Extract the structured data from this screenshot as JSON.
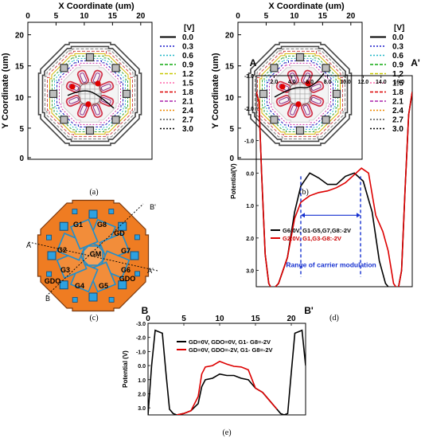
{
  "figure": {
    "panels": {
      "a": {
        "caption": "(a)",
        "x_title": "X Coordinate (um)",
        "y_title": "Y Coordinate (um)",
        "x_ticks": [
          "0",
          "5",
          "10",
          "15",
          "20"
        ],
        "y_ticks": [
          "20",
          "15",
          "10",
          "5",
          "0"
        ],
        "legend_title": "[V]",
        "legend": [
          "0.0",
          "0.3",
          "0.6",
          "0.9",
          "1.2",
          "1.5",
          "1.8",
          "2.1",
          "2.4",
          "2.7",
          "3.0"
        ],
        "legend_colors": [
          "#000000",
          "#1a1acc",
          "#22b7c8",
          "#11aa11",
          "#c8c800",
          "#ff66aa",
          "#dd0000",
          "#aa22aa",
          "#ee8800",
          "#555555",
          "#000000"
        ]
      },
      "b": {
        "caption": "(b)",
        "x_title": "X Coordinate (um)",
        "y_title": "Y Coordinate (um)",
        "x_ticks": [
          "0",
          "5",
          "10",
          "15",
          "20"
        ],
        "y_ticks": [
          "20",
          "15",
          "10",
          "5",
          "0"
        ],
        "legend_title": "[V]",
        "legend": [
          "0.0",
          "0.3",
          "0.6",
          "0.9",
          "1.2",
          "1.5",
          "1.8",
          "2.1",
          "2.4",
          "2.7",
          "3.0"
        ]
      },
      "c": {
        "caption": "(c)",
        "labels": [
          "B'",
          "A",
          "A'",
          "B",
          "G1",
          "G8",
          "GD",
          "G2",
          "G7",
          "GM",
          "G3",
          "G6",
          "GDO",
          "G4",
          "G5",
          "GDO"
        ]
      },
      "d": {
        "caption": "(d)",
        "left_label": "A",
        "right_label": "A'",
        "y_title": "Potential(V)",
        "x_ticks": [
          "2.0",
          "4.0",
          "6.0",
          "8.0",
          "10.0",
          "12.0",
          "14.0",
          "16.0"
        ],
        "y_ticks": [
          "-3.0",
          "-2.0",
          "-1.0",
          "0.0",
          "1.0",
          "2.0",
          "3.0"
        ],
        "annotation": "Range of carrier modulation"
      },
      "e": {
        "caption": "(e)",
        "left_label": "B",
        "right_label": "B'",
        "y_title": "Potential (V)",
        "x_ticks": [
          "0",
          "5",
          "10",
          "15",
          "20"
        ],
        "y_ticks": [
          "-3.0",
          "-2.0",
          "-1.0",
          "0.0",
          "1.0",
          "2.0",
          "3.0"
        ]
      }
    }
  },
  "chart_data": [
    {
      "type": "line",
      "panel": "d",
      "xlabel": "",
      "ylabel": "Potential(V)",
      "xlim": [
        0,
        17.5
      ],
      "ylim": [
        -3.0,
        3.5
      ],
      "y_inverted": true,
      "series": [
        {
          "name": "G6:0V, G1-G5,G7,G8:-2V",
          "color": "#000000",
          "x": [
            0.0,
            0.3,
            0.6,
            1.0,
            1.4,
            1.8,
            2.5,
            3.5,
            4.3,
            5.0,
            6.0,
            7.0,
            8.0,
            9.0,
            10.0,
            11.0,
            12.0,
            13.0,
            13.8,
            14.5,
            15.4,
            15.9,
            16.3,
            16.7,
            17.1,
            17.5
          ],
          "y": [
            -2.5,
            -2.2,
            0.0,
            2.5,
            3.4,
            3.6,
            3.4,
            2.6,
            1.2,
            0.4,
            0.0,
            0.15,
            0.35,
            0.35,
            0.1,
            0.0,
            0.25,
            1.2,
            2.7,
            3.4,
            3.7,
            3.6,
            3.0,
            0.5,
            -1.8,
            -2.5
          ]
        },
        {
          "name": "G2:0V, G1,G3-G8:-2V",
          "color": "#dd0000",
          "x": [
            0.0,
            0.3,
            0.6,
            1.0,
            1.4,
            1.8,
            2.5,
            3.5,
            4.3,
            5.0,
            6.0,
            7.0,
            8.0,
            9.0,
            10.0,
            11.0,
            11.8,
            12.6,
            13.4,
            14.2,
            14.8,
            15.4,
            15.9,
            16.3,
            16.7,
            17.1,
            17.5
          ],
          "y": [
            -2.5,
            -2.2,
            0.0,
            2.5,
            3.4,
            3.6,
            3.4,
            2.6,
            1.4,
            0.9,
            0.7,
            0.6,
            0.55,
            0.45,
            0.3,
            0.05,
            -0.15,
            0.0,
            1.3,
            1.8,
            2.4,
            3.4,
            3.6,
            3.0,
            0.5,
            -1.8,
            -2.5
          ]
        }
      ]
    },
    {
      "type": "line",
      "panel": "e",
      "xlabel": "",
      "ylabel": "Potential (V)",
      "xlim": [
        0,
        22
      ],
      "ylim": [
        -3.0,
        3.5
      ],
      "y_inverted": true,
      "series": [
        {
          "name": "GD=0V, GDO=0V, G1- G8=-2V",
          "color": "#000000",
          "x": [
            0.0,
            0.5,
            1.0,
            1.5,
            2.0,
            2.5,
            3.0,
            3.5,
            4.0,
            5.0,
            6.0,
            7.0,
            7.5,
            8.0,
            9.0,
            10.0,
            11.0,
            12.0,
            13.0,
            14.0,
            15.0,
            16.0,
            17.0,
            18.0,
            18.5,
            19.0,
            19.5,
            20.0,
            20.5,
            21.0,
            21.5,
            22.0
          ],
          "y": [
            3.5,
            0.0,
            -2.5,
            -2.4,
            -2.3,
            0.5,
            3.1,
            3.4,
            3.5,
            3.4,
            3.2,
            2.7,
            1.5,
            1.0,
            0.9,
            0.6,
            0.7,
            0.7,
            0.9,
            1.0,
            1.6,
            1.9,
            2.5,
            3.1,
            3.4,
            3.5,
            3.4,
            0.5,
            -2.3,
            -2.4,
            -2.5,
            0.0
          ]
        },
        {
          "name": "GD=0V, GDO=-2V, G1- G8=-2V",
          "color": "#dd0000",
          "x": [
            4.0,
            5.0,
            6.0,
            7.0,
            7.5,
            8.0,
            9.0,
            10.0,
            11.0,
            12.0,
            13.0,
            14.0,
            15.0,
            16.0,
            17.0,
            18.0
          ],
          "y": [
            3.5,
            3.4,
            3.2,
            2.2,
            0.6,
            0.1,
            0.0,
            -0.3,
            -0.1,
            0.05,
            0.1,
            0.3,
            1.6,
            1.9,
            2.5,
            3.1
          ]
        }
      ]
    }
  ]
}
